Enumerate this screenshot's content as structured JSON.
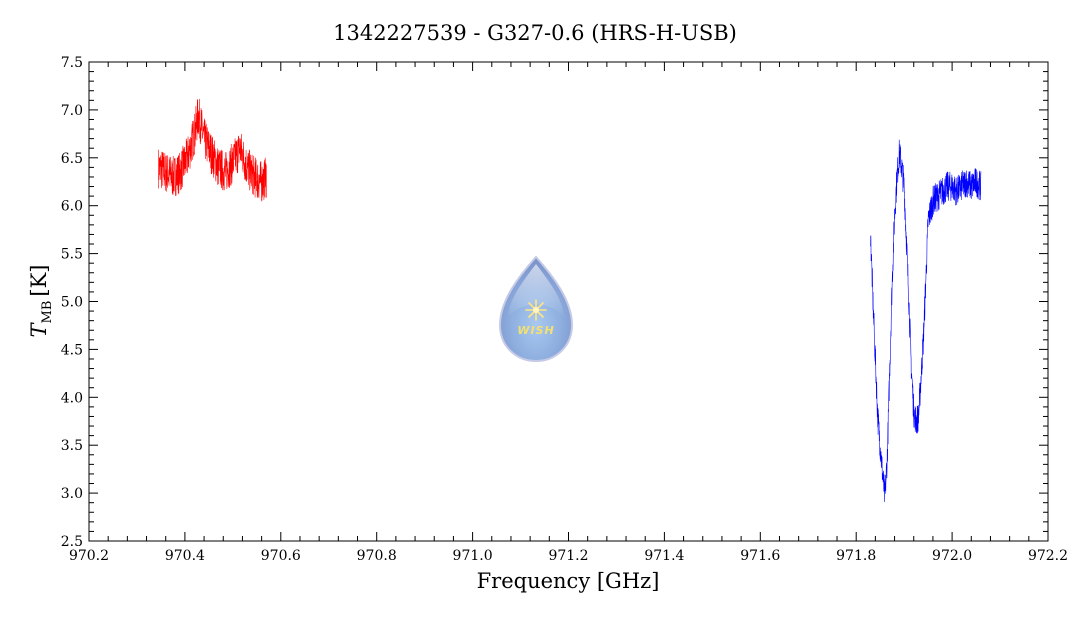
{
  "chart_data": {
    "type": "line",
    "title": "1342227539 - G327-0.6 (HRS-H-USB)",
    "xlabel": "Frequency [GHz]",
    "ylabel_main": "T",
    "ylabel_sub": "MB",
    "ylabel_unit": "[K]",
    "xlim": [
      970.2,
      972.2
    ],
    "ylim": [
      2.5,
      7.5
    ],
    "x_ticks": [
      "970.2",
      "970.4",
      "970.6",
      "970.8",
      "971.0",
      "971.2",
      "971.4",
      "971.6",
      "971.8",
      "972.0",
      "972.2"
    ],
    "y_ticks": [
      "2.5",
      "3.0",
      "3.5",
      "4.0",
      "4.5",
      "5.0",
      "5.5",
      "6.0",
      "6.5",
      "7.0",
      "7.5"
    ],
    "grid": false,
    "logo_text": "WISH",
    "series": [
      {
        "color": "#ff0000",
        "x": [
          970.345,
          970.36,
          970.375,
          970.39,
          970.405,
          970.42,
          970.428,
          970.44,
          970.455,
          970.47,
          970.485,
          970.5,
          970.515,
          970.53,
          970.545,
          970.56,
          970.57
        ],
        "y": [
          6.4,
          6.35,
          6.3,
          6.35,
          6.5,
          6.75,
          6.95,
          6.7,
          6.55,
          6.4,
          6.35,
          6.45,
          6.6,
          6.4,
          6.3,
          6.25,
          6.3
        ],
        "noise": 0.22
      },
      {
        "color": "#0000ff",
        "x": [
          971.83,
          971.835,
          971.84,
          971.845,
          971.85,
          971.855,
          971.86,
          971.865,
          971.87,
          971.875,
          971.88,
          971.885,
          971.89,
          971.895,
          971.9,
          971.905,
          971.91,
          971.915,
          971.92,
          971.925,
          971.93,
          971.935,
          971.94,
          971.945,
          971.95,
          971.96,
          971.97,
          971.98,
          971.99,
          972.0,
          972.01,
          972.02,
          972.03,
          972.04,
          972.05,
          972.06
        ],
        "y": [
          5.7,
          5.0,
          4.4,
          3.8,
          3.5,
          3.2,
          2.95,
          3.4,
          4.3,
          5.2,
          5.9,
          6.3,
          6.55,
          6.4,
          6.2,
          5.6,
          5.0,
          4.3,
          3.85,
          3.75,
          3.8,
          4.2,
          4.6,
          5.2,
          5.85,
          6.05,
          6.1,
          6.15,
          6.2,
          6.2,
          6.15,
          6.2,
          6.25,
          6.2,
          6.25,
          6.2
        ],
        "noise": 0.16
      }
    ]
  }
}
